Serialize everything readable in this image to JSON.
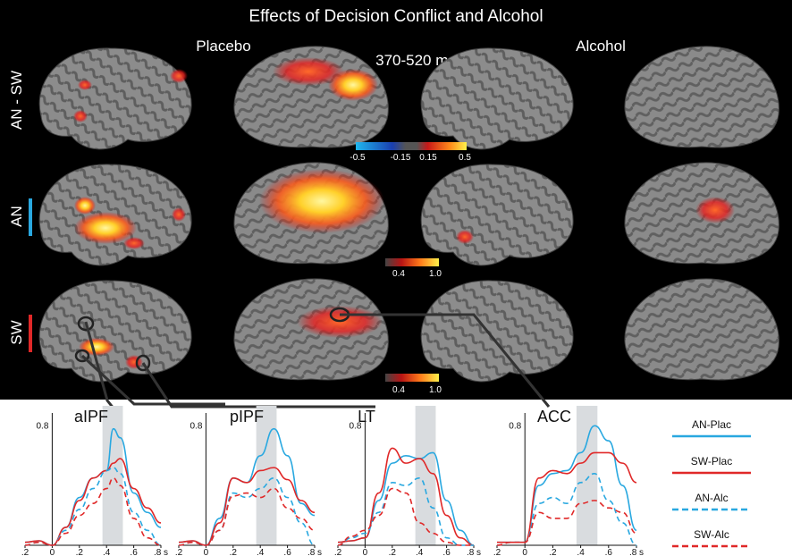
{
  "figure": {
    "title": "Effects of Decision Conflict and Alcohol",
    "time_window": "370-520 ms",
    "columns": [
      "Placebo",
      "Alcohol"
    ],
    "rows": [
      {
        "label": "AN - SW",
        "accent": null
      },
      {
        "label": "AN",
        "accent": "#29a8e0"
      },
      {
        "label": "SW",
        "accent": "#e02828"
      }
    ],
    "colorbars": [
      {
        "ticks": [
          "-0.5",
          "-0.15",
          "0.15",
          "0.5"
        ],
        "type": "diverging"
      },
      {
        "ticks": [
          "0.4",
          "1.0"
        ],
        "type": "sequential"
      },
      {
        "ticks": [
          "0.4",
          "1.0"
        ],
        "type": "sequential"
      }
    ]
  },
  "colors": {
    "an_plac": "#29a8e0",
    "sw_plac": "#e02828",
    "an_alc": "#29a8e0",
    "sw_alc": "#e02828",
    "highlight": "#d9dcdf"
  },
  "legend": [
    {
      "label": "AN-Plac",
      "color": "#29a8e0",
      "dashed": false
    },
    {
      "label": "SW-Plac",
      "color": "#e02828",
      "dashed": false
    },
    {
      "label": "AN-Alc",
      "color": "#29a8e0",
      "dashed": true
    },
    {
      "label": "SW-Alc",
      "color": "#e02828",
      "dashed": true
    }
  ],
  "chart_data": [
    {
      "type": "line",
      "title": "aIPF",
      "x_ticks": [
        ".2",
        "0",
        ".2",
        ".4",
        ".6",
        ".8 s"
      ],
      "y_ticks": [
        "0.8"
      ],
      "xlim": [
        -0.2,
        0.8
      ],
      "ylim": [
        0,
        0.85
      ],
      "highlight_window": [
        0.37,
        0.52
      ],
      "x": [
        -0.2,
        -0.1,
        0,
        0.1,
        0.2,
        0.3,
        0.4,
        0.45,
        0.5,
        0.6,
        0.7,
        0.8
      ],
      "series": [
        {
          "name": "AN-Plac",
          "values": [
            0.02,
            0.03,
            0.0,
            0.12,
            0.32,
            0.45,
            0.5,
            0.78,
            0.72,
            0.35,
            0.22,
            0.12
          ]
        },
        {
          "name": "SW-Plac",
          "values": [
            0.02,
            0.03,
            0.0,
            0.12,
            0.3,
            0.45,
            0.5,
            0.55,
            0.58,
            0.38,
            0.25,
            0.15
          ]
        },
        {
          "name": "AN-Alc",
          "values": [
            0.0,
            0.02,
            0.0,
            0.1,
            0.24,
            0.38,
            0.5,
            0.52,
            0.48,
            0.22,
            0.1,
            0.0
          ]
        },
        {
          "name": "SW-Alc",
          "values": [
            0.0,
            0.02,
            0.0,
            0.08,
            0.2,
            0.28,
            0.38,
            0.45,
            0.4,
            0.18,
            0.05,
            0.0
          ]
        }
      ]
    },
    {
      "type": "line",
      "title": "pIPF",
      "x_ticks": [
        ".2",
        "0",
        ".2",
        ".4",
        ".6",
        ".8 s"
      ],
      "y_ticks": [
        "0.8"
      ],
      "xlim": [
        -0.2,
        0.8
      ],
      "ylim": [
        0,
        0.85
      ],
      "highlight_window": [
        0.37,
        0.52
      ],
      "x": [
        -0.2,
        -0.1,
        0,
        0.1,
        0.2,
        0.3,
        0.4,
        0.5,
        0.6,
        0.7,
        0.8
      ],
      "series": [
        {
          "name": "AN-Plac",
          "values": [
            0.02,
            0.03,
            0.0,
            0.18,
            0.45,
            0.42,
            0.6,
            0.78,
            0.6,
            0.28,
            0.2
          ]
        },
        {
          "name": "SW-Plac",
          "values": [
            0.02,
            0.03,
            0.0,
            0.15,
            0.45,
            0.42,
            0.5,
            0.52,
            0.44,
            0.3,
            0.22
          ]
        },
        {
          "name": "AN-Alc",
          "values": [
            0.0,
            0.02,
            0.0,
            0.1,
            0.35,
            0.32,
            0.38,
            0.45,
            0.32,
            0.15,
            0.0
          ]
        },
        {
          "name": "SW-Alc",
          "values": [
            0.0,
            0.02,
            0.0,
            0.1,
            0.33,
            0.35,
            0.32,
            0.38,
            0.25,
            0.18,
            0.1
          ]
        }
      ]
    },
    {
      "type": "line",
      "title": "LT",
      "x_ticks": [
        ".2",
        "0",
        ".2",
        ".4",
        ".6",
        ".8 s"
      ],
      "y_ticks": [
        "0.8"
      ],
      "xlim": [
        -0.2,
        0.8
      ],
      "ylim": [
        0,
        0.85
      ],
      "highlight_window": [
        0.37,
        0.52
      ],
      "x": [
        -0.2,
        -0.1,
        0,
        0.1,
        0.2,
        0.3,
        0.4,
        0.5,
        0.6,
        0.7,
        0.8
      ],
      "series": [
        {
          "name": "AN-Plac",
          "values": [
            0.02,
            0.03,
            0.05,
            0.3,
            0.55,
            0.6,
            0.58,
            0.62,
            0.3,
            0.1,
            0.0
          ]
        },
        {
          "name": "SW-Plac",
          "values": [
            0.02,
            0.03,
            0.05,
            0.35,
            0.65,
            0.55,
            0.58,
            0.48,
            0.2,
            0.05,
            0.0
          ]
        },
        {
          "name": "AN-Alc",
          "values": [
            0.0,
            0.05,
            0.08,
            0.22,
            0.42,
            0.4,
            0.45,
            0.25,
            0.05,
            0.0,
            0.0
          ]
        },
        {
          "name": "SW-Alc",
          "values": [
            0.0,
            0.06,
            0.1,
            0.2,
            0.38,
            0.35,
            0.15,
            0.08,
            0.02,
            0.0,
            0.0
          ]
        }
      ]
    },
    {
      "type": "line",
      "title": "ACC",
      "x_ticks": [
        ".2",
        "0",
        ".2",
        ".4",
        ".6",
        ".8 s"
      ],
      "y_ticks": [
        "0.8"
      ],
      "xlim": [
        -0.2,
        0.8
      ],
      "ylim": [
        0,
        0.85
      ],
      "highlight_window": [
        0.37,
        0.52
      ],
      "x": [
        -0.2,
        -0.1,
        0,
        0.1,
        0.2,
        0.3,
        0.4,
        0.5,
        0.6,
        0.7,
        0.8
      ],
      "series": [
        {
          "name": "AN-Plac",
          "values": [
            0.02,
            0.02,
            0.02,
            0.4,
            0.48,
            0.5,
            0.62,
            0.8,
            0.7,
            0.4,
            0.1
          ]
        },
        {
          "name": "SW-Plac",
          "values": [
            0.02,
            0.02,
            0.02,
            0.45,
            0.5,
            0.48,
            0.55,
            0.62,
            0.62,
            0.55,
            0.42
          ]
        },
        {
          "name": "AN-Alc",
          "values": [
            0.0,
            0.02,
            0.02,
            0.28,
            0.32,
            0.28,
            0.42,
            0.48,
            0.3,
            0.15,
            0.0
          ]
        },
        {
          "name": "SW-Alc",
          "values": [
            0.0,
            0.02,
            0.02,
            0.22,
            0.18,
            0.18,
            0.28,
            0.3,
            0.25,
            0.22,
            0.08
          ]
        }
      ]
    }
  ]
}
